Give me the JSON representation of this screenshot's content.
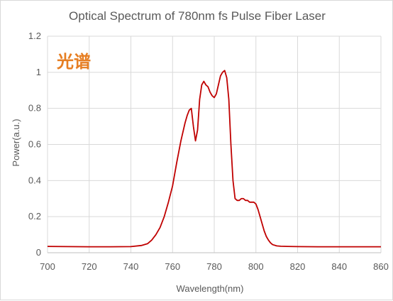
{
  "chart_data": {
    "type": "line",
    "title": "Optical Spectrum of 780nm fs Pulse Fiber Laser",
    "xlabel": "Wavelength(nm)",
    "ylabel": "Power(a.u.)",
    "xlim": [
      700,
      860
    ],
    "ylim": [
      0,
      1.2
    ],
    "xticks": [
      "700",
      "720",
      "740",
      "760",
      "780",
      "800",
      "820",
      "840",
      "860"
    ],
    "yticks": [
      "0",
      "0.2",
      "0.4",
      "0.6",
      "0.8",
      "1",
      "1.2"
    ],
    "grid": true,
    "legend": "none",
    "annotation": "光谱",
    "annotation_color": "#e67e22",
    "line_color": "#c00000",
    "grid_color": "#d9d9d9",
    "series": [
      {
        "x": [
          700,
          710,
          720,
          730,
          740,
          745,
          748,
          750,
          752,
          754,
          756,
          758,
          760,
          762,
          764,
          766,
          767,
          768,
          769,
          770,
          771,
          772,
          773,
          774,
          775,
          776,
          777,
          778,
          779,
          780,
          781,
          782,
          783,
          784,
          785,
          786,
          787,
          788,
          789,
          790,
          791,
          792,
          793,
          794,
          795,
          796,
          797,
          798,
          799,
          800,
          801,
          802,
          803,
          804,
          805,
          806,
          807,
          808,
          810,
          812,
          815,
          820,
          830,
          840,
          850,
          860
        ],
        "y": [
          0.035,
          0.034,
          0.033,
          0.033,
          0.034,
          0.04,
          0.05,
          0.07,
          0.1,
          0.14,
          0.2,
          0.28,
          0.37,
          0.5,
          0.62,
          0.72,
          0.76,
          0.79,
          0.8,
          0.7,
          0.62,
          0.68,
          0.85,
          0.93,
          0.95,
          0.93,
          0.92,
          0.89,
          0.87,
          0.86,
          0.88,
          0.93,
          0.98,
          1.0,
          1.01,
          0.97,
          0.85,
          0.6,
          0.4,
          0.3,
          0.29,
          0.29,
          0.3,
          0.3,
          0.29,
          0.29,
          0.28,
          0.28,
          0.28,
          0.27,
          0.24,
          0.2,
          0.16,
          0.12,
          0.09,
          0.07,
          0.055,
          0.045,
          0.038,
          0.036,
          0.035,
          0.034,
          0.033,
          0.033,
          0.033,
          0.033
        ]
      }
    ]
  }
}
